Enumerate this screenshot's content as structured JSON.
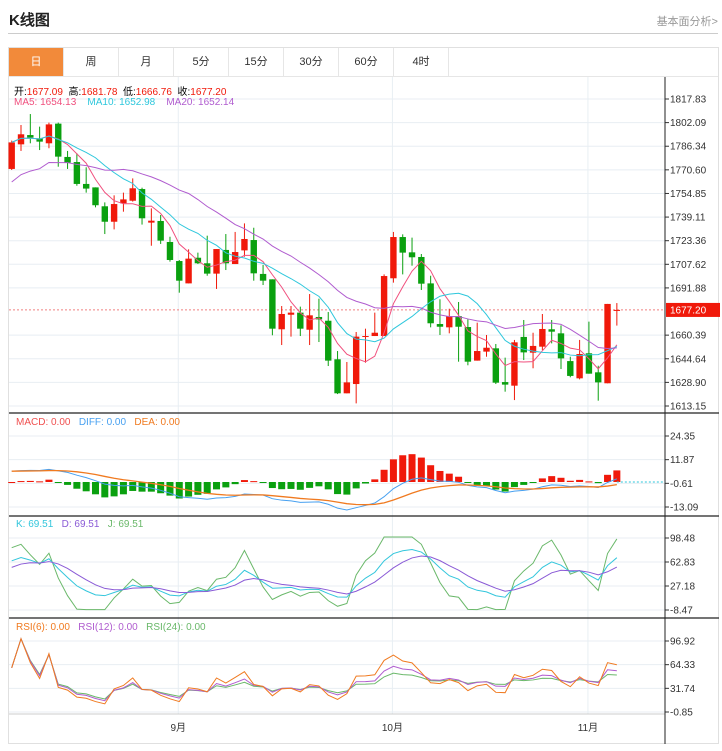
{
  "header": {
    "title": "K线图",
    "link": "基本面分析>"
  },
  "tabs": [
    "日",
    "周",
    "月",
    "5分",
    "15分",
    "30分",
    "60分",
    "4时"
  ],
  "ohlc_info": {
    "open_label": "开:",
    "open": "1677.09",
    "high_label": "高:",
    "high": "1681.78",
    "low_label": "低:",
    "low": "1666.76",
    "close_label": "收:",
    "close": "1677.20"
  },
  "ma_info": {
    "ma5": "MA5: 1654.13",
    "ma10": "MA10: 1652.98",
    "ma20": "MA20: 1652.14"
  },
  "macd_info": {
    "macd": "MACD: 0.00",
    "diff": "DIFF: 0.00",
    "dea": "DEA: 0.00"
  },
  "kdj_info": {
    "k": "K: 69.51",
    "d": "D: 69.51",
    "j": "J: 69.51"
  },
  "rsi_info": {
    "rsi6": "RSI(6): 0.00",
    "rsi12": "RSI(12): 0.00",
    "rsi24": "RSI(24): 0.00"
  },
  "colors": {
    "up": "#f0190a",
    "down": "#0aa00f",
    "ma5": "#f0507e",
    "ma10": "#2ec7dc",
    "ma20": "#b05ccf",
    "dea": "#f07a20",
    "diff": "#47a0f0",
    "k": "#33c6dc",
    "d": "#8a5ad6",
    "j": "#6ab86a"
  },
  "chart_data": {
    "type": "candlestick",
    "price_ticks": [
      "1817.83",
      "1802.09",
      "1786.34",
      "1770.60",
      "1754.85",
      "1739.11",
      "1723.36",
      "1707.62",
      "1691.88",
      "1660.39",
      "1644.64",
      "1628.90",
      "1613.15"
    ],
    "price_range": [
      1613.15,
      1817.83
    ],
    "last_price": "1677.20",
    "macd_ticks": [
      "24.35",
      "11.87",
      "-0.61",
      "-13.09"
    ],
    "kdj_ticks": [
      "98.48",
      "62.83",
      "27.18",
      "-8.47"
    ],
    "rsi_ticks": [
      "96.92",
      "64.33",
      "31.74",
      "-0.85"
    ],
    "month_labels": [
      {
        "label": "9月",
        "index": 18
      },
      {
        "label": "10月",
        "index": 41
      },
      {
        "label": "11月",
        "index": 62
      }
    ],
    "candles": [
      [
        1771.2,
        1790.1,
        1770.5,
        1788.9
      ],
      [
        1787.6,
        1800.5,
        1783.2,
        1794.3
      ],
      [
        1793.8,
        1807.8,
        1788.3,
        1792.1
      ],
      [
        1791.6,
        1799.4,
        1783.8,
        1789.4
      ],
      [
        1788.3,
        1802.1,
        1785.0,
        1800.9
      ],
      [
        1801.4,
        1802.1,
        1772.7,
        1779.4
      ],
      [
        1779.2,
        1783.2,
        1771.2,
        1775.4
      ],
      [
        1775.8,
        1781.6,
        1760.0,
        1761.2
      ],
      [
        1761.2,
        1772.3,
        1755.4,
        1758.1
      ],
      [
        1758.9,
        1758.9,
        1745.6,
        1747.0
      ],
      [
        1746.3,
        1748.9,
        1727.8,
        1736.0
      ],
      [
        1736.0,
        1753.6,
        1730.9,
        1747.8
      ],
      [
        1748.3,
        1755.4,
        1742.7,
        1750.9
      ],
      [
        1750.0,
        1764.9,
        1749.4,
        1758.3
      ],
      [
        1757.8,
        1758.7,
        1734.1,
        1738.3
      ],
      [
        1735.4,
        1744.9,
        1720.0,
        1736.7
      ],
      [
        1736.5,
        1740.5,
        1721.2,
        1723.4
      ],
      [
        1722.5,
        1726.0,
        1709.4,
        1710.5
      ],
      [
        1709.8,
        1710.5,
        1688.7,
        1696.7
      ],
      [
        1694.9,
        1717.6,
        1694.9,
        1711.4
      ],
      [
        1712.0,
        1715.4,
        1707.8,
        1708.3
      ],
      [
        1708.3,
        1726.7,
        1700.0,
        1701.4
      ],
      [
        1701.4,
        1717.8,
        1691.2,
        1717.8
      ],
      [
        1717.2,
        1727.8,
        1703.8,
        1708.3
      ],
      [
        1707.8,
        1729.2,
        1707.8,
        1715.8
      ],
      [
        1716.9,
        1734.9,
        1712.7,
        1724.5
      ],
      [
        1723.8,
        1732.0,
        1696.7,
        1701.6
      ],
      [
        1701.2,
        1707.2,
        1693.8,
        1696.7
      ],
      [
        1697.6,
        1697.6,
        1660.3,
        1664.7
      ],
      [
        1664.3,
        1679.8,
        1653.8,
        1674.5
      ],
      [
        1674.0,
        1679.8,
        1659.4,
        1675.4
      ],
      [
        1675.4,
        1679.4,
        1659.8,
        1664.7
      ],
      [
        1664.0,
        1687.8,
        1653.8,
        1673.6
      ],
      [
        1672.5,
        1684.7,
        1655.8,
        1670.9
      ],
      [
        1670.0,
        1675.8,
        1639.8,
        1643.4
      ],
      [
        1644.3,
        1649.8,
        1621.1,
        1621.6
      ],
      [
        1621.6,
        1642.5,
        1621.6,
        1628.9
      ],
      [
        1627.8,
        1662.5,
        1614.9,
        1659.4
      ],
      [
        1659.6,
        1664.7,
        1642.0,
        1659.8
      ],
      [
        1659.8,
        1675.4,
        1659.8,
        1662.0
      ],
      [
        1659.8,
        1700.9,
        1659.8,
        1699.8
      ],
      [
        1698.3,
        1729.2,
        1695.4,
        1725.8
      ],
      [
        1725.8,
        1727.6,
        1700.9,
        1715.4
      ],
      [
        1715.6,
        1725.4,
        1706.7,
        1712.3
      ],
      [
        1712.5,
        1714.5,
        1690.5,
        1694.7
      ],
      [
        1694.9,
        1700.0,
        1665.6,
        1668.3
      ],
      [
        1667.8,
        1684.3,
        1660.5,
        1666.0
      ],
      [
        1665.6,
        1678.0,
        1661.6,
        1673.1
      ],
      [
        1673.1,
        1682.5,
        1642.7,
        1666.0
      ],
      [
        1665.8,
        1671.0,
        1640.3,
        1642.7
      ],
      [
        1643.4,
        1668.7,
        1643.4,
        1649.8
      ],
      [
        1649.4,
        1660.5,
        1646.0,
        1652.0
      ],
      [
        1651.6,
        1654.5,
        1627.8,
        1628.7
      ],
      [
        1629.1,
        1645.4,
        1622.7,
        1627.4
      ],
      [
        1626.7,
        1657.2,
        1617.1,
        1655.6
      ],
      [
        1659.2,
        1670.5,
        1643.8,
        1648.9
      ],
      [
        1648.7,
        1662.0,
        1638.3,
        1653.2
      ],
      [
        1652.7,
        1674.5,
        1650.5,
        1664.5
      ],
      [
        1664.3,
        1670.5,
        1654.9,
        1662.7
      ],
      [
        1661.6,
        1666.9,
        1637.8,
        1644.9
      ],
      [
        1643.1,
        1646.0,
        1632.3,
        1633.2
      ],
      [
        1631.6,
        1657.2,
        1630.9,
        1647.8
      ],
      [
        1648.3,
        1669.4,
        1634.7,
        1634.7
      ],
      [
        1635.6,
        1640.0,
        1616.7,
        1628.9
      ],
      [
        1628.3,
        1681.2,
        1628.3,
        1681.2
      ],
      [
        1677.09,
        1681.78,
        1666.76,
        1677.2
      ]
    ]
  }
}
